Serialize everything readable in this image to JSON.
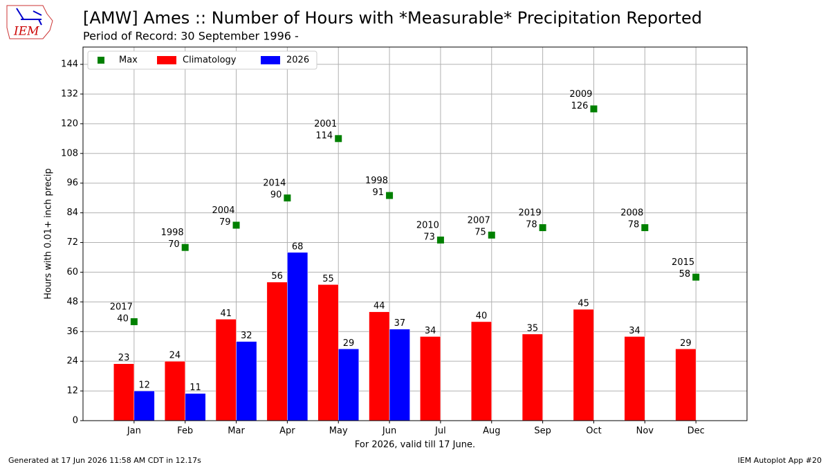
{
  "logo_text": "IEM",
  "footer_left": "Generated at 17 Jun 2026 11:58 AM CDT in 12.17s",
  "footer_right": "IEM Autoplot App #20",
  "chart_data": {
    "type": "bar",
    "title": "[AMW] Ames :: Number of Hours with *Measurable* Precipitation Reported",
    "subtitle": "Period of Record: 30 September 1996 -",
    "xlabel": "For 2026, valid till 17 June.",
    "ylabel": "Hours with 0.01+ inch precip",
    "categories": [
      "Jan",
      "Feb",
      "Mar",
      "Apr",
      "May",
      "Jun",
      "Jul",
      "Aug",
      "Sep",
      "Oct",
      "Nov",
      "Dec"
    ],
    "series": [
      {
        "name": "Max",
        "color": "#008000",
        "kind": "marker",
        "values": [
          40,
          70,
          79,
          90,
          114,
          91,
          73,
          75,
          78,
          126,
          78,
          58
        ],
        "years": [
          "2017",
          "1998",
          "2004",
          "2014",
          "2001",
          "1998",
          "2010",
          "2007",
          "2019",
          "2009",
          "2008",
          "2015"
        ]
      },
      {
        "name": "Climatology",
        "color": "#ff0000",
        "kind": "bar",
        "values": [
          23,
          24,
          41,
          56,
          55,
          44,
          34,
          40,
          35,
          45,
          34,
          29
        ]
      },
      {
        "name": "2026",
        "color": "#0000ff",
        "kind": "bar",
        "values": [
          12,
          11,
          32,
          68,
          29,
          37,
          null,
          null,
          null,
          null,
          null,
          null
        ]
      }
    ],
    "ylim": [
      0,
      151
    ],
    "yticks": [
      0,
      12,
      24,
      36,
      48,
      60,
      72,
      84,
      96,
      108,
      120,
      132,
      144
    ],
    "grid": true,
    "legend": "upper-left"
  }
}
